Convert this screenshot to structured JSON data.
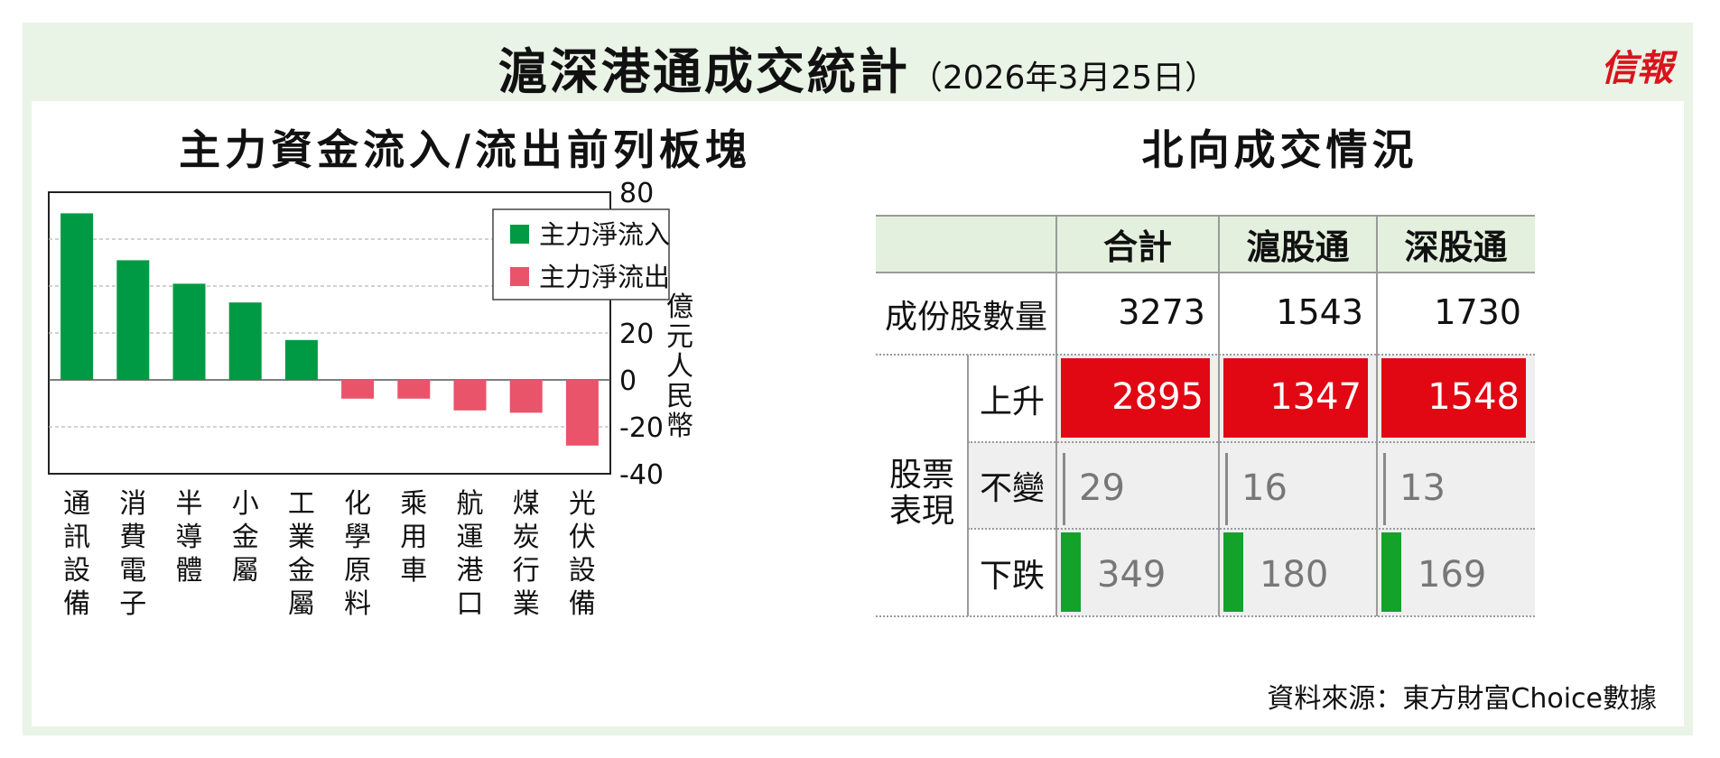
{
  "header": {
    "title": "滬深港通成交統計",
    "date": "（2026年3月25日）",
    "logo": "信報"
  },
  "left_panel": {
    "title": "主力資金流入/流出前列板塊",
    "colors": {
      "inflow": "#009a44",
      "outflow": "#e9546b"
    }
  },
  "chart_data": {
    "type": "bar",
    "title": "主力資金流入/流出前列板塊",
    "categories": [
      "通訊設備",
      "消費電子",
      "半導體",
      "小金屬",
      "工業金屬",
      "化學原料",
      "乘用車",
      "航運港口",
      "煤炭行業",
      "光伏設備"
    ],
    "values": [
      71,
      51,
      41,
      33,
      17,
      -8,
      -8,
      -13,
      -14,
      -28
    ],
    "series": [
      {
        "name": "主力淨流入"
      },
      {
        "name": "主力淨流出"
      }
    ],
    "ylabel": "億元人民幣",
    "ylim": [
      -40,
      80
    ],
    "yticks": [
      "80",
      "60",
      "40",
      "20",
      "0",
      "-20",
      "-40"
    ],
    "grid": true,
    "legend_position": "top-right"
  },
  "right_panel": {
    "title": "北向成交情況",
    "columns": [
      "合計",
      "滬股通",
      "深股通"
    ],
    "constituents_label": "成份股數量",
    "constituents": [
      "3273",
      "1543",
      "1730"
    ],
    "performance_label": "股票表現",
    "rows": [
      {
        "label": "上升",
        "values": [
          "2895",
          "1347",
          "1548"
        ],
        "color": "#e10813"
      },
      {
        "label": "不變",
        "values": [
          "29",
          "16",
          "13"
        ],
        "color": "#8a8a8a"
      },
      {
        "label": "下跌",
        "values": [
          "349",
          "180",
          "169"
        ],
        "color": "#13a32b"
      }
    ]
  },
  "source": "資料來源：東方財富Choice數據"
}
